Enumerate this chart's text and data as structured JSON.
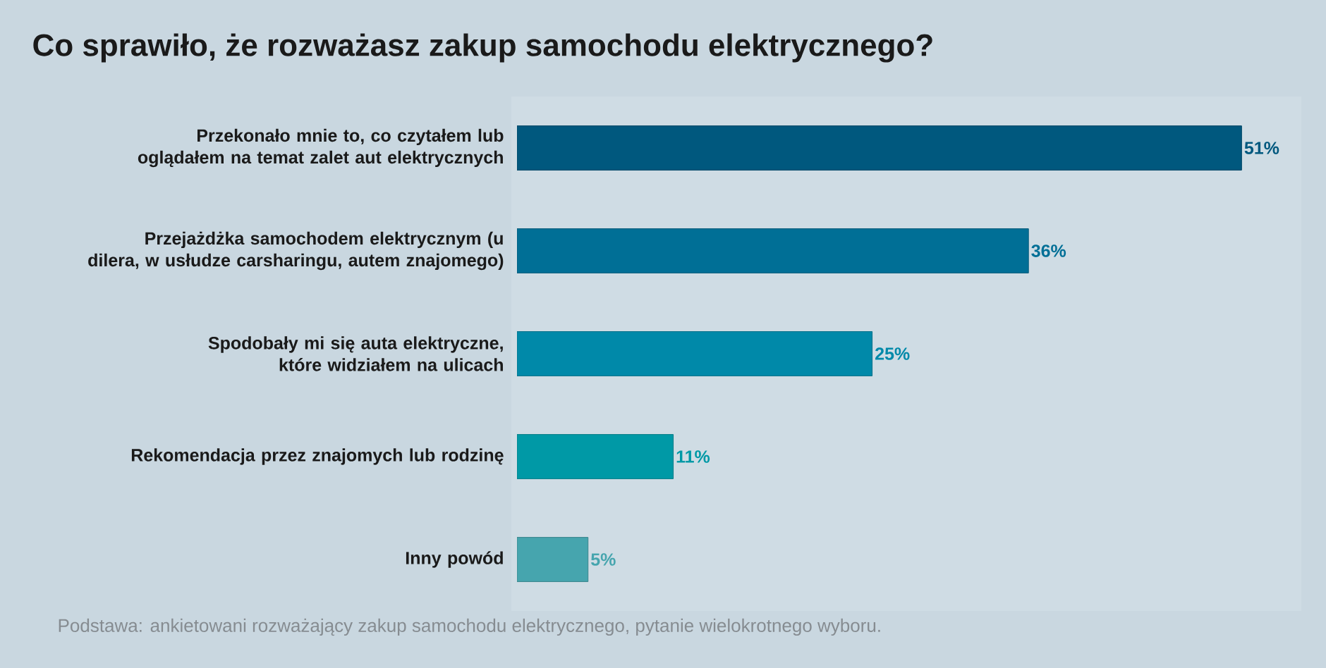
{
  "chart_data": {
    "type": "bar",
    "orientation": "horizontal",
    "title": "Co sprawiło, że rozważasz zakup samochodu elektrycznego?",
    "categories": [
      "Przekonało mnie to, co czytałem lub oglądałem na temat zalet aut elektrycznych",
      "Przejażdżka samochodem elektrycznym (u dilera, w usłudze carsharingu, autem znajomego)",
      "Spodobały mi się auta elektryczne, które widziałem na ulicach",
      "Rekomendacja przez znajomych lub rodzinę",
      "Inny powód"
    ],
    "values": [
      51,
      36,
      25,
      11,
      5
    ],
    "colors": [
      "#00587e",
      "#006f96",
      "#0089a9",
      "#0099a6",
      "#46a5ae"
    ],
    "value_labels": [
      "51%",
      "36%",
      "25%",
      "11%",
      "5%"
    ],
    "annotations": [
      "Podstawa: ankietowani rozważający zakup samochodu elektrycznego, pytanie wielokrotnego wyboru."
    ]
  }
}
